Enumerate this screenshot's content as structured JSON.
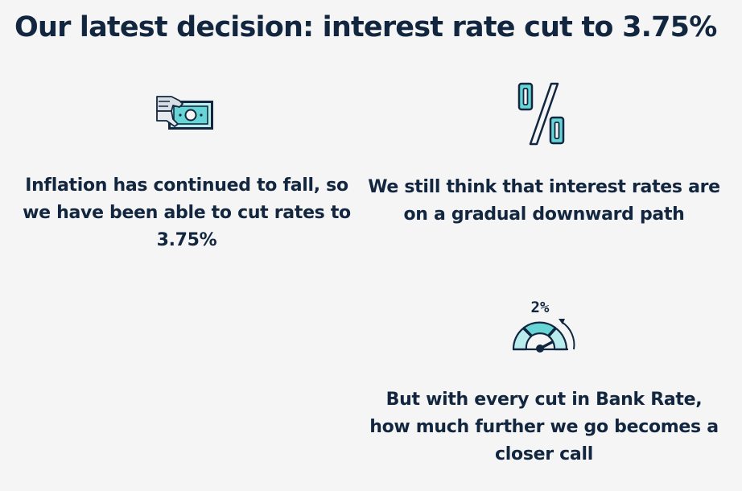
{
  "header": {
    "title": "Our latest decision: interest rate cut to 3.75%"
  },
  "cards": [
    {
      "icon": "hand-giving-banknote-icon",
      "text": "Inflation has continued to fall, so we have been able to cut rates to 3.75%"
    },
    {
      "icon": "percent-sign-icon",
      "text": "We still think that interest rates are on a gradual downward path"
    },
    {
      "icon": "gauge-target-icon",
      "icon_label": "2%",
      "text": "But with every cut in Bank Rate, how much further we go becomes a closer call"
    }
  ],
  "colors": {
    "background": "#f5f5f6",
    "text": "#12273f",
    "accent": "#67d5d5",
    "accent_light": "#b9ecec"
  }
}
